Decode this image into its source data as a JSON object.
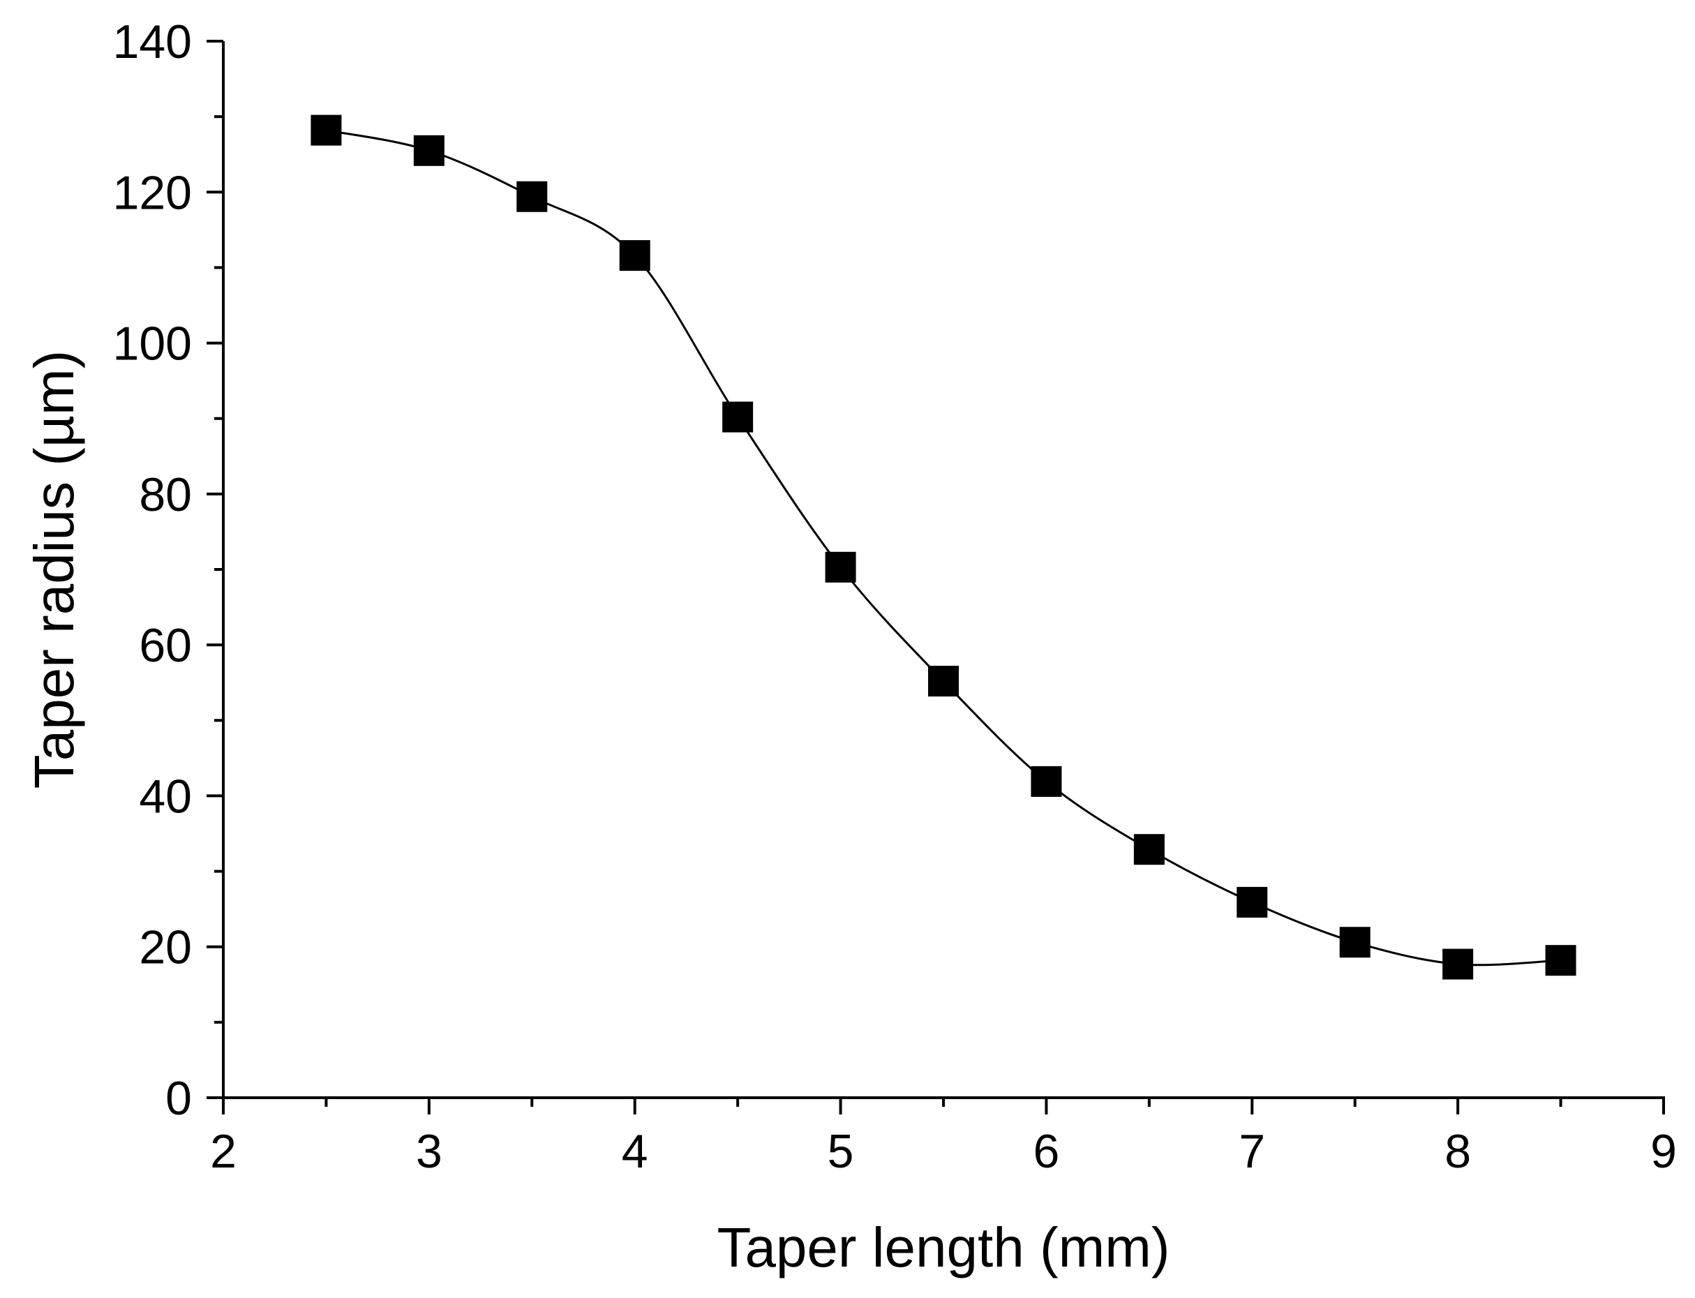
{
  "chart_data": {
    "type": "line",
    "title": "",
    "xlabel": "Taper length (mm)",
    "ylabel": "Taper radius (µm)",
    "xlim": [
      2,
      9
    ],
    "ylim": [
      0,
      140
    ],
    "xticks": [
      2,
      3,
      4,
      5,
      6,
      7,
      8,
      9
    ],
    "yticks": [
      0,
      20,
      40,
      60,
      80,
      100,
      120,
      140
    ],
    "grid": false,
    "legend": "none",
    "series": [
      {
        "marker": "filled-square",
        "color": "#000000",
        "line": "solid",
        "x": [
          2.5,
          3.0,
          3.5,
          4.0,
          4.5,
          5.0,
          5.5,
          6.0,
          6.5,
          7.0,
          7.5,
          8.0,
          8.5
        ],
        "y": [
          128.2,
          125.5,
          119.4,
          111.6,
          90.2,
          70.3,
          55.2,
          41.9,
          32.9,
          25.9,
          20.6,
          17.7,
          18.2
        ]
      }
    ]
  }
}
